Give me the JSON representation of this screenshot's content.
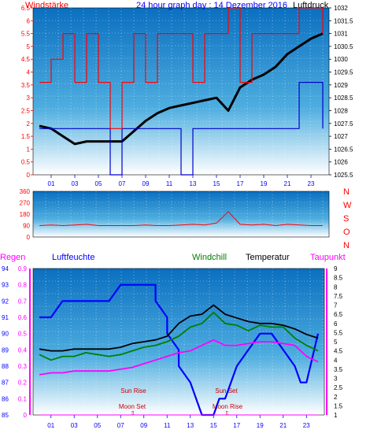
{
  "chart_data": [
    {
      "type": "line",
      "title": "24 hour graph day : 14 Dezember 2016",
      "left_label": "Windstärke",
      "right_label": "Luftdruck",
      "x_ticks": [
        "01",
        "03",
        "05",
        "07",
        "09",
        "11",
        "13",
        "15",
        "17",
        "19",
        "21",
        "23"
      ],
      "ylim_left": [
        0,
        6.5
      ],
      "y_ticks_left": [
        "0",
        "0.5",
        "1",
        "1.5",
        "2",
        "2.5",
        "3",
        "3.5",
        "4",
        "4.5",
        "5",
        "5.5",
        "6",
        "6.5"
      ],
      "ylim_right": [
        1025.5,
        1032
      ],
      "y_ticks_right": [
        "1025.5",
        "1026",
        "1026.5",
        "1027",
        "1027.5",
        "1028",
        "1028.5",
        "1029",
        "1029.5",
        "1030",
        "1030.5",
        "1031",
        "1031.5",
        "1032"
      ],
      "series": [
        {
          "name": "Luftdruck",
          "color": "#000000",
          "x": [
            0,
            1,
            2,
            3,
            4,
            5,
            6,
            7,
            8,
            9,
            10,
            11,
            12,
            13,
            14,
            15,
            16,
            17,
            18,
            19,
            20,
            21,
            22,
            23,
            24
          ],
          "values": [
            1027.4,
            1027.3,
            1027.0,
            1026.7,
            1026.8,
            1026.8,
            1026.8,
            1026.8,
            1027.2,
            1027.6,
            1027.9,
            1028.1,
            1028.2,
            1028.3,
            1028.4,
            1028.5,
            1028.0,
            1028.9,
            1029.2,
            1029.4,
            1029.7,
            1030.2,
            1030.5,
            1030.8,
            1031.0
          ]
        },
        {
          "name": "Wind",
          "color": "#0000cc",
          "x": [
            0,
            1,
            2,
            3,
            4,
            5,
            6,
            7,
            8,
            9,
            10,
            11,
            12,
            13,
            14,
            15,
            16,
            17,
            18,
            19,
            20,
            21,
            22,
            23,
            24
          ],
          "values": [
            1.8,
            1.8,
            1.8,
            1.8,
            1.8,
            1.8,
            0,
            1.8,
            1.8,
            1.8,
            1.8,
            1.8,
            0,
            1.8,
            1.8,
            1.8,
            1.8,
            1.8,
            1.8,
            1.8,
            1.8,
            1.8,
            3.6,
            3.6,
            1.8
          ]
        },
        {
          "name": "Böen",
          "color": "#ff0000",
          "x": [
            0,
            1,
            2,
            3,
            4,
            5,
            6,
            7,
            8,
            9,
            10,
            11,
            12,
            13,
            14,
            15,
            16,
            17,
            18,
            19,
            20,
            21,
            22,
            23,
            24
          ],
          "values": [
            3.6,
            4.5,
            5.5,
            3.6,
            5.5,
            3.6,
            1.8,
            3.6,
            5.5,
            3.6,
            5.5,
            5.5,
            5.5,
            3.6,
            5.5,
            5.5,
            6.5,
            3.6,
            5.5,
            5.5,
            5.5,
            5.5,
            6.5,
            6.5,
            5.5
          ]
        }
      ]
    },
    {
      "type": "line",
      "x_ticks": [],
      "y_ticks_left": [
        "360",
        "270",
        "180",
        "90",
        "0"
      ],
      "ylim": [
        0,
        360
      ],
      "right_labels": [
        "N",
        "W",
        "S",
        "O",
        "N"
      ],
      "series": [
        {
          "name": "Windrichtung",
          "color": "#ff0000",
          "x": [
            0,
            1,
            2,
            3,
            4,
            5,
            6,
            7,
            8,
            9,
            10,
            11,
            12,
            13,
            14,
            15,
            16,
            17,
            18,
            19,
            20,
            21,
            22,
            23,
            24
          ],
          "values": [
            90,
            95,
            90,
            95,
            100,
            90,
            90,
            90,
            90,
            95,
            90,
            90,
            95,
            100,
            95,
            110,
            200,
            100,
            95,
            100,
            90,
            100,
            95,
            90,
            90
          ]
        }
      ]
    },
    {
      "type": "line",
      "labels": {
        "regen": "Regen",
        "luftfeuchte": "Luftfeuchte",
        "windchill": "Windchill",
        "temperatur": "Temperatur",
        "taupunkt": "Taupunkt"
      },
      "x_ticks": [
        "01",
        "03",
        "05",
        "07",
        "09",
        "11",
        "13",
        "15",
        "17",
        "19",
        "21",
        "23"
      ],
      "y_ticks_humidity": [
        "85",
        "86",
        "87",
        "88",
        "89",
        "90",
        "91",
        "92",
        "93",
        "94"
      ],
      "ylim_humidity": [
        85,
        94
      ],
      "y_ticks_rain": [
        "0",
        "0.1",
        "0.2",
        "0.3",
        "0.4",
        "0.5",
        "0.6",
        "0.7",
        "0.8",
        "0.9"
      ],
      "ylim_rain": [
        0,
        0.9
      ],
      "y_ticks_temp": [
        "1",
        "1.5",
        "2",
        "2.5",
        "3",
        "3.5",
        "4",
        "4.5",
        "5",
        "5.5",
        "6",
        "6.5",
        "7",
        "7.5",
        "8",
        "8.5",
        "9"
      ],
      "ylim_temp": [
        1,
        9
      ],
      "annotations": [
        {
          "text": "Sun Rise",
          "x": 8.1,
          "row": "upper"
        },
        {
          "text": "Moon Set",
          "x": 8.0,
          "row": "lower"
        },
        {
          "text": "Sun Set",
          "x": 16.1,
          "row": "upper"
        },
        {
          "text": "Moon Rise",
          "x": 16.2,
          "row": "lower"
        }
      ],
      "series": [
        {
          "name": "Luftfeuchte",
          "color": "#0000ff",
          "x": [
            0,
            1,
            2,
            3,
            3.01,
            4,
            5,
            6,
            7,
            8,
            9,
            10,
            10.01,
            11,
            11.01,
            12,
            12.01,
            13,
            13.5,
            14,
            15,
            15.5,
            16,
            17,
            18,
            19,
            20,
            21,
            22,
            22.5,
            23,
            24
          ],
          "values": [
            91,
            91,
            92,
            92,
            92,
            92,
            92,
            92,
            93,
            93,
            93,
            93,
            92,
            91,
            90,
            89,
            88,
            87,
            86,
            85,
            85,
            86,
            86,
            88,
            89,
            90,
            90,
            89,
            88,
            87,
            87,
            90
          ]
        },
        {
          "name": "Temperatur",
          "color": "#000000",
          "x": [
            0,
            1,
            2,
            3,
            4,
            5,
            6,
            7,
            8,
            9,
            10,
            11,
            12,
            13,
            14,
            15,
            16,
            17,
            18,
            19,
            20,
            21,
            22,
            23,
            24
          ],
          "values": [
            4.6,
            4.5,
            4.5,
            4.6,
            4.6,
            4.6,
            4.6,
            4.7,
            4.9,
            5.0,
            5.1,
            5.3,
            6.0,
            6.4,
            6.5,
            7.0,
            6.5,
            6.3,
            6.1,
            6.0,
            6.0,
            5.9,
            5.7,
            5.4,
            5.2
          ]
        },
        {
          "name": "Windchill",
          "color": "#008000",
          "x": [
            0,
            1,
            2,
            3,
            4,
            5,
            6,
            7,
            8,
            9,
            10,
            11,
            12,
            13,
            14,
            15,
            16,
            17,
            18,
            19,
            20,
            21,
            22,
            23,
            24
          ],
          "values": [
            4.3,
            4.0,
            4.2,
            4.2,
            4.4,
            4.3,
            4.2,
            4.3,
            4.5,
            4.7,
            4.8,
            5.0,
            5.3,
            5.8,
            6.0,
            6.6,
            6.0,
            5.9,
            5.6,
            5.9,
            5.8,
            5.8,
            5.2,
            4.8,
            4.5
          ]
        },
        {
          "name": "Taupunkt",
          "color": "#ff00ff",
          "x": [
            0,
            1,
            2,
            3,
            4,
            5,
            6,
            7,
            8,
            9,
            10,
            11,
            12,
            13,
            14,
            15,
            16,
            17,
            18,
            19,
            20,
            21,
            22,
            23,
            24
          ],
          "values": [
            3.2,
            3.3,
            3.3,
            3.4,
            3.4,
            3.4,
            3.4,
            3.5,
            3.6,
            3.8,
            4.0,
            4.2,
            4.4,
            4.5,
            4.8,
            5.1,
            4.8,
            4.8,
            4.9,
            5.0,
            5.0,
            4.9,
            4.8,
            4.2,
            3.9
          ]
        },
        {
          "name": "Regen",
          "color": "#ff00ff",
          "x": [
            0,
            24
          ],
          "values": [
            0,
            0
          ]
        }
      ]
    }
  ]
}
